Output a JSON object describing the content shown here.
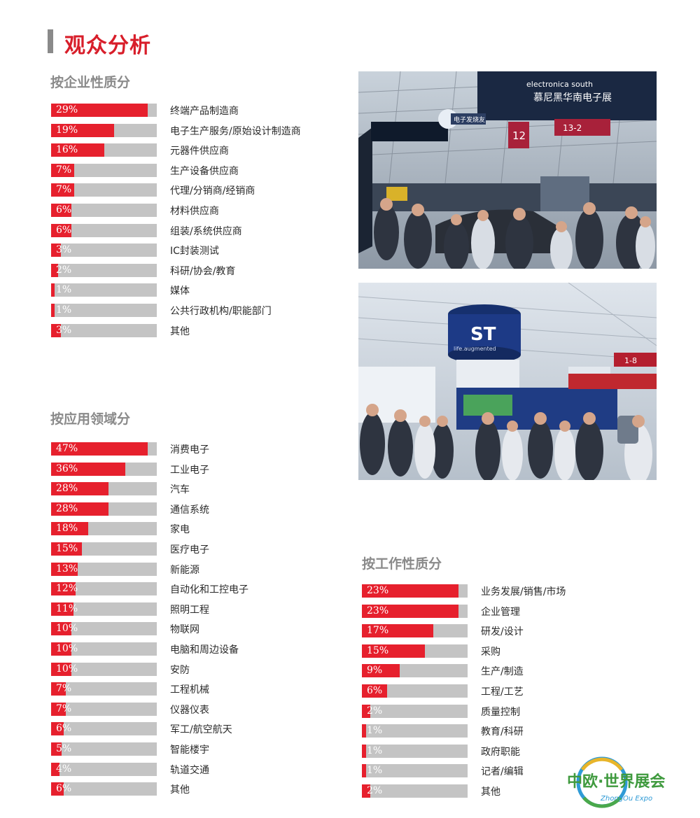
{
  "page": {
    "title": "观众分析"
  },
  "chart_data": [
    {
      "type": "bar",
      "title": "按企业性质分",
      "categories": [
        "终端产品制造商",
        "电子生产服务/原始设计制造商",
        "元器件供应商",
        "生产设备供应商",
        "代理/分销商/经销商",
        "材料供应商",
        "组装/系统供应商",
        "IC封装测试",
        "科研/协会/教育",
        "媒体",
        "公共行政机构/职能部门",
        "其他"
      ],
      "values": [
        29,
        19,
        16,
        7,
        7,
        6,
        6,
        3,
        2,
        1,
        1,
        3
      ],
      "labels": [
        "29%",
        "19%",
        "16%",
        "7%",
        "7%",
        "6%",
        "6%",
        "3%",
        "2%",
        "1%",
        "1%",
        "3%"
      ]
    },
    {
      "type": "bar",
      "title": "按应用领域分",
      "categories": [
        "消费电子",
        "工业电子",
        "汽车",
        "通信系统",
        "家电",
        "医疗电子",
        "新能源",
        "自动化和工控电子",
        "照明工程",
        "物联网",
        "电脑和周边设备",
        "安防",
        "工程机械",
        "仪器仪表",
        "军工/航空航天",
        "智能楼宇",
        "轨道交通",
        "其他"
      ],
      "values": [
        47,
        36,
        28,
        28,
        18,
        15,
        13,
        12,
        11,
        10,
        10,
        10,
        7,
        7,
        6,
        5,
        4,
        6
      ],
      "labels": [
        "47%",
        "36%",
        "28%",
        "28%",
        "18%",
        "15%",
        "13%",
        "12%",
        "11%",
        "10%",
        "10%",
        "10%",
        "7%",
        "7%",
        "6%",
        "5%",
        "4%",
        "6%"
      ]
    },
    {
      "type": "bar",
      "title": "按工作性质分",
      "categories": [
        "业务发展/销售/市场",
        "企业管理",
        "研发/设计",
        "采购",
        "生产/制造",
        "工程/工艺",
        "质量控制",
        "教育/科研",
        "政府职能",
        "记者/编辑",
        "其他"
      ],
      "values": [
        23,
        23,
        17,
        15,
        9,
        6,
        2,
        1,
        1,
        1,
        2
      ],
      "labels": [
        "23%",
        "23%",
        "17%",
        "15%",
        "9%",
        "6%",
        "2%",
        "1%",
        "1%",
        "1%",
        "2%"
      ]
    }
  ],
  "photos": {
    "top": {
      "banner_cn": "慕尼黑华南电子展",
      "banner_en": "electronica south",
      "hall": "12",
      "sign": "13-2",
      "booth": "电子发烧友"
    },
    "bottom": {
      "logo": "ST",
      "sign": "1-8",
      "slogan_en": "life.augmented"
    }
  },
  "logo": {
    "cn": "中欧·世界展会",
    "en": "ZhongOu Expo"
  },
  "colors": {
    "accent": "#e6202d",
    "track": "#c4c4c4",
    "heading": "#8a8a8a",
    "title": "#d81e2a"
  }
}
